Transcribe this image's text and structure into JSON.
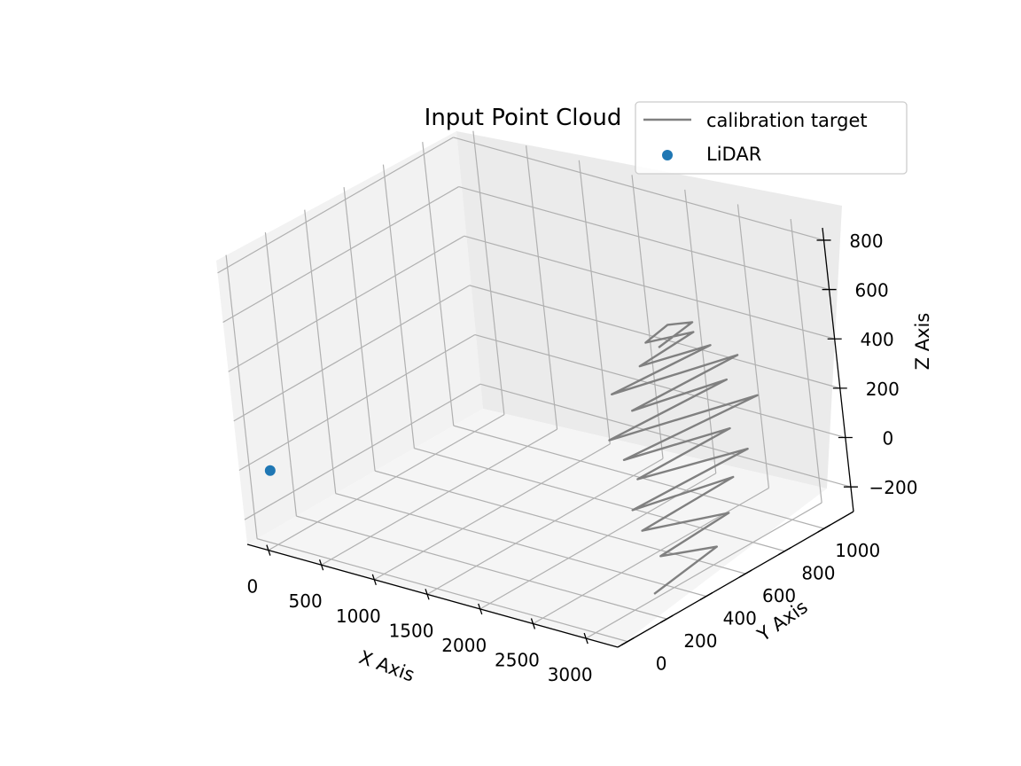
{
  "chart_data": {
    "type": "scatter",
    "projection": "3d",
    "title": "Input Point Cloud",
    "xlabel": "X Axis",
    "ylabel": "Y Axis",
    "zlabel": "Z Axis",
    "xlim": [
      -200,
      3300
    ],
    "ylim": [
      -50,
      1150
    ],
    "zlim": [
      -300,
      850
    ],
    "x_ticks": [
      "0",
      "500",
      "1000",
      "1500",
      "2000",
      "2500",
      "3000"
    ],
    "y_ticks": [
      "0",
      "200",
      "400",
      "600",
      "800",
      "1000"
    ],
    "z_ticks": [
      "−200",
      "0",
      "200",
      "400",
      "600",
      "800"
    ],
    "grid": true,
    "legend_position": "top-right",
    "series": [
      {
        "name": "calibration target",
        "kind": "line",
        "color": "#808080",
        "x": [
          3000,
          3050,
          3000,
          3100,
          2950,
          3080,
          2980,
          3150,
          2960,
          3100,
          2950,
          3200,
          2930,
          3120,
          2980,
          3150,
          2900,
          3100,
          3000,
          3050,
          2980,
          3010,
          3050,
          3000
        ],
        "y": [
          300,
          600,
          350,
          650,
          300,
          700,
          250,
          750,
          300,
          700,
          250,
          800,
          200,
          700,
          300,
          750,
          250,
          650,
          350,
          600,
          400,
          500,
          600,
          450
        ],
        "z": [
          -280,
          -220,
          -150,
          -100,
          -30,
          20,
          80,
          120,
          180,
          220,
          280,
          320,
          380,
          420,
          460,
          500,
          540,
          580,
          620,
          650,
          690,
          720,
          690,
          650
        ]
      },
      {
        "name": "LiDAR",
        "kind": "scatter",
        "color": "#1f77b4",
        "x": [
          0
        ],
        "y": [
          0
        ],
        "z": [
          0
        ]
      }
    ]
  }
}
